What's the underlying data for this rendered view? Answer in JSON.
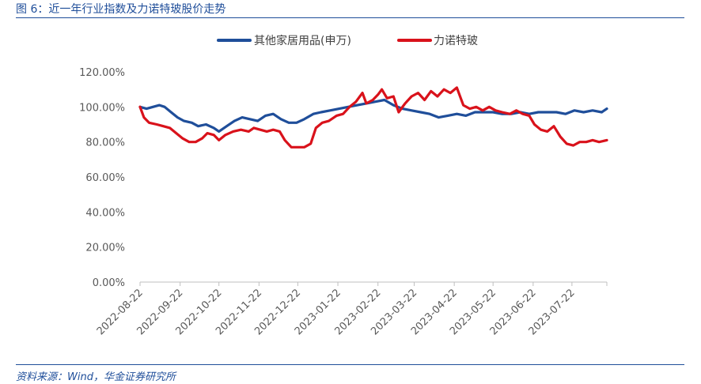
{
  "figure_title": "图 6：近一年行业指数及力诺特玻股价走势",
  "source": "资料来源：Wind，华金证券研究所",
  "chart_data": {
    "type": "line",
    "ylim": [
      0,
      120
    ],
    "y_ticks": [
      "0.00%",
      "20.00%",
      "40.00%",
      "60.00%",
      "80.00%",
      "100.00%",
      "120.00%"
    ],
    "x_ticks": [
      "2022-08-22",
      "2022-09-22",
      "2022-10-22",
      "2022-11-22",
      "2022-12-22",
      "2023-01-22",
      "2023-02-22",
      "2023-03-22",
      "2023-04-22",
      "2023-05-22",
      "2023-06-22",
      "2023-07-22"
    ],
    "legend_position": "top",
    "series": [
      {
        "name": "其他家居用品(申万)",
        "color": "#1f4e9a",
        "points": [
          [
            "2022-08-22",
            100
          ],
          [
            "2022-08-27",
            99
          ],
          [
            "2022-09-01",
            100
          ],
          [
            "2022-09-06",
            101
          ],
          [
            "2022-09-10",
            100
          ],
          [
            "2022-09-15",
            97
          ],
          [
            "2022-09-20",
            94
          ],
          [
            "2022-09-25",
            92
          ],
          [
            "2022-10-01",
            91
          ],
          [
            "2022-10-06",
            89
          ],
          [
            "2022-10-12",
            90
          ],
          [
            "2022-10-18",
            88
          ],
          [
            "2022-10-22",
            86
          ],
          [
            "2022-10-28",
            89
          ],
          [
            "2022-11-03",
            92
          ],
          [
            "2022-11-09",
            94
          ],
          [
            "2022-11-15",
            93
          ],
          [
            "2022-11-21",
            92
          ],
          [
            "2022-11-27",
            95
          ],
          [
            "2022-12-03",
            96
          ],
          [
            "2022-12-09",
            93
          ],
          [
            "2022-12-15",
            91
          ],
          [
            "2022-12-21",
            91
          ],
          [
            "2022-12-27",
            93
          ],
          [
            "2023-01-03",
            96
          ],
          [
            "2023-01-09",
            97
          ],
          [
            "2023-01-16",
            98
          ],
          [
            "2023-01-23",
            99
          ],
          [
            "2023-01-30",
            100
          ],
          [
            "2023-02-06",
            101
          ],
          [
            "2023-02-13",
            102
          ],
          [
            "2023-02-20",
            103
          ],
          [
            "2023-02-27",
            104
          ],
          [
            "2023-03-06",
            101
          ],
          [
            "2023-03-13",
            99
          ],
          [
            "2023-03-20",
            98
          ],
          [
            "2023-03-27",
            97
          ],
          [
            "2023-04-03",
            96
          ],
          [
            "2023-04-10",
            94
          ],
          [
            "2023-04-17",
            95
          ],
          [
            "2023-04-24",
            96
          ],
          [
            "2023-05-01",
            95
          ],
          [
            "2023-05-08",
            97
          ],
          [
            "2023-05-15",
            97
          ],
          [
            "2023-05-22",
            97
          ],
          [
            "2023-05-29",
            96
          ],
          [
            "2023-06-05",
            96
          ],
          [
            "2023-06-12",
            97
          ],
          [
            "2023-06-19",
            96
          ],
          [
            "2023-06-26",
            97
          ],
          [
            "2023-07-03",
            97
          ],
          [
            "2023-07-10",
            97
          ],
          [
            "2023-07-17",
            96
          ],
          [
            "2023-07-24",
            98
          ],
          [
            "2023-07-31",
            97
          ],
          [
            "2023-08-07",
            98
          ],
          [
            "2023-08-14",
            97
          ],
          [
            "2023-08-18",
            99
          ]
        ]
      },
      {
        "name": "力诺特玻",
        "color": "#d9121b",
        "points": [
          [
            "2022-08-22",
            100
          ],
          [
            "2022-08-25",
            94
          ],
          [
            "2022-08-29",
            91
          ],
          [
            "2022-09-04",
            90
          ],
          [
            "2022-09-09",
            89
          ],
          [
            "2022-09-14",
            88
          ],
          [
            "2022-09-19",
            85
          ],
          [
            "2022-09-24",
            82
          ],
          [
            "2022-09-29",
            80
          ],
          [
            "2022-10-04",
            80
          ],
          [
            "2022-10-09",
            82
          ],
          [
            "2022-10-13",
            85
          ],
          [
            "2022-10-18",
            84
          ],
          [
            "2022-10-22",
            81
          ],
          [
            "2022-10-27",
            84
          ],
          [
            "2022-11-02",
            86
          ],
          [
            "2022-11-08",
            87
          ],
          [
            "2022-11-14",
            86
          ],
          [
            "2022-11-18",
            88
          ],
          [
            "2022-11-23",
            87
          ],
          [
            "2022-11-28",
            86
          ],
          [
            "2022-12-03",
            87
          ],
          [
            "2022-12-08",
            86
          ],
          [
            "2022-12-12",
            81
          ],
          [
            "2022-12-17",
            77
          ],
          [
            "2022-12-22",
            77
          ],
          [
            "2022-12-27",
            77
          ],
          [
            "2023-01-01",
            79
          ],
          [
            "2023-01-05",
            88
          ],
          [
            "2023-01-10",
            91
          ],
          [
            "2023-01-15",
            92
          ],
          [
            "2023-01-21",
            95
          ],
          [
            "2023-01-26",
            96
          ],
          [
            "2023-01-31",
            100
          ],
          [
            "2023-02-05",
            103
          ],
          [
            "2023-02-10",
            108
          ],
          [
            "2023-02-13",
            102
          ],
          [
            "2023-02-18",
            104
          ],
          [
            "2023-02-22",
            107
          ],
          [
            "2023-02-25",
            110
          ],
          [
            "2023-03-01",
            105
          ],
          [
            "2023-03-06",
            106
          ],
          [
            "2023-03-10",
            97
          ],
          [
            "2023-03-15",
            102
          ],
          [
            "2023-03-20",
            106
          ],
          [
            "2023-03-25",
            108
          ],
          [
            "2023-03-30",
            104
          ],
          [
            "2023-04-04",
            109
          ],
          [
            "2023-04-09",
            106
          ],
          [
            "2023-04-14",
            110
          ],
          [
            "2023-04-19",
            108
          ],
          [
            "2023-04-24",
            111
          ],
          [
            "2023-04-29",
            101
          ],
          [
            "2023-05-04",
            99
          ],
          [
            "2023-05-09",
            100
          ],
          [
            "2023-05-14",
            98
          ],
          [
            "2023-05-19",
            100
          ],
          [
            "2023-05-24",
            98
          ],
          [
            "2023-05-29",
            97
          ],
          [
            "2023-06-04",
            96
          ],
          [
            "2023-06-09",
            98
          ],
          [
            "2023-06-14",
            96
          ],
          [
            "2023-06-19",
            95
          ],
          [
            "2023-06-23",
            90
          ],
          [
            "2023-06-28",
            87
          ],
          [
            "2023-07-03",
            86
          ],
          [
            "2023-07-08",
            89
          ],
          [
            "2023-07-13",
            83
          ],
          [
            "2023-07-18",
            79
          ],
          [
            "2023-07-23",
            78
          ],
          [
            "2023-07-28",
            80
          ],
          [
            "2023-08-02",
            80
          ],
          [
            "2023-08-07",
            81
          ],
          [
            "2023-08-12",
            80
          ],
          [
            "2023-08-18",
            81
          ]
        ]
      }
    ]
  }
}
